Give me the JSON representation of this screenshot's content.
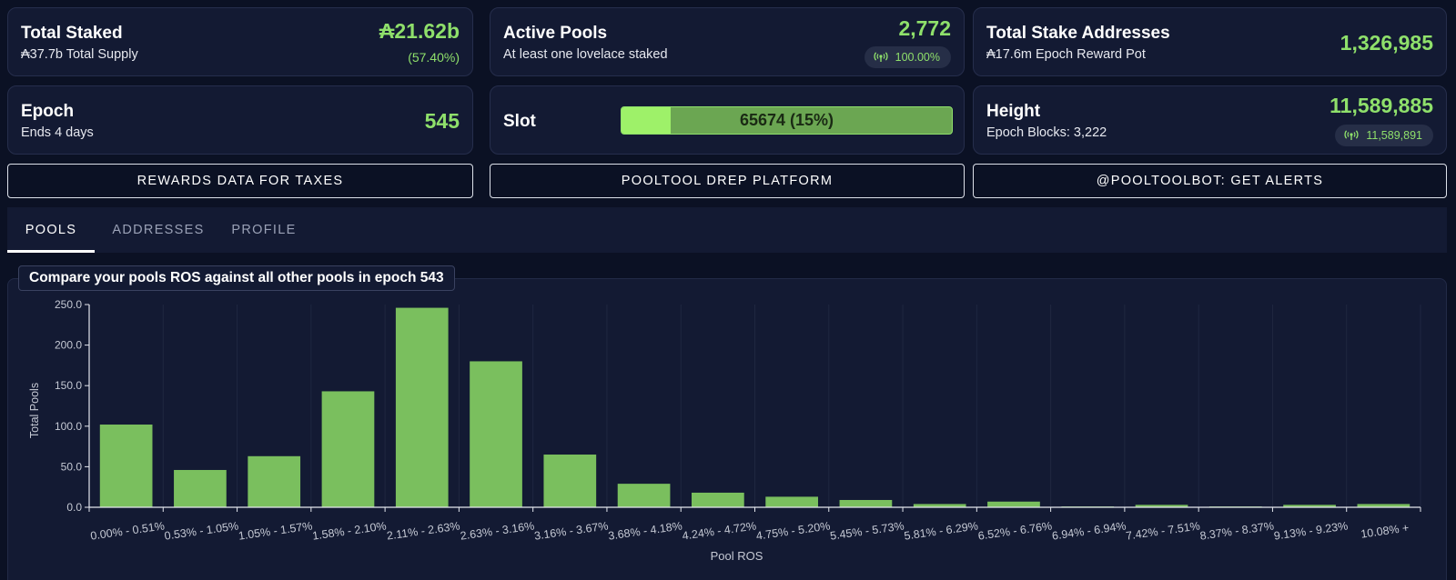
{
  "stats": {
    "total_staked": {
      "title": "Total Staked",
      "value": "₳21.62b",
      "sub": "₳37.7b Total Supply",
      "percent": "(57.40%)"
    },
    "active_pools": {
      "title": "Active Pools",
      "value": "2,772",
      "sub": "At least one lovelace staked",
      "pill": "100.00%"
    },
    "stake_addresses": {
      "title": "Total Stake Addresses",
      "value": "1,326,985",
      "sub": "₳17.6m Epoch Reward Pot"
    },
    "epoch": {
      "title": "Epoch",
      "value": "545",
      "sub": "Ends 4 days"
    },
    "slot": {
      "title": "Slot",
      "progress_label": "65674 (15%)",
      "progress_fraction": 0.15
    },
    "height": {
      "title": "Height",
      "value": "11,589,885",
      "sub": "Epoch Blocks: 3,222",
      "pill": "11,589,891"
    }
  },
  "actions": {
    "rewards": "REWARDS DATA FOR TAXES",
    "drep": "POOLTOOL DREP PLATFORM",
    "bot": "@POOLTOOLBOT: GET ALERTS"
  },
  "tabs": [
    {
      "label": "POOLS",
      "active": true
    },
    {
      "label": "ADDRESSES",
      "active": false
    },
    {
      "label": "PROFILE",
      "active": false
    }
  ],
  "chart_heading": "Compare your pools ROS against all other pools in epoch 543",
  "icons": {
    "signal": "broadcast-signal-icon"
  },
  "colors": {
    "accent_green": "#8fe06b",
    "bar_green": "#7abf5e",
    "progress_light": "#9ef169",
    "progress_dark": "#6ba652"
  },
  "chart_data": {
    "type": "bar",
    "xlabel": "Pool ROS",
    "ylabel": "Total Pools",
    "ylim": [
      0,
      250
    ],
    "yticks": [
      "0.0",
      "50.0",
      "100.0",
      "150.0",
      "200.0",
      "250.0"
    ],
    "grid": true,
    "categories": [
      "0.00% - 0.51%",
      "0.53% - 1.05%",
      "1.05% - 1.57%",
      "1.58% - 2.10%",
      "2.11% - 2.63%",
      "2.63% - 3.16%",
      "3.16% - 3.67%",
      "3.68% - 4.18%",
      "4.24% - 4.72%",
      "4.75% - 5.20%",
      "5.45% - 5.73%",
      "5.81% - 6.29%",
      "6.52% - 6.76%",
      "6.94% - 6.94%",
      "7.42% - 7.51%",
      "8.37% - 8.37%",
      "9.13% - 9.23%",
      "10.08% +"
    ],
    "values": [
      102,
      46,
      63,
      143,
      246,
      180,
      65,
      29,
      18,
      13,
      9,
      4,
      7,
      1,
      3,
      1,
      3,
      4
    ]
  }
}
